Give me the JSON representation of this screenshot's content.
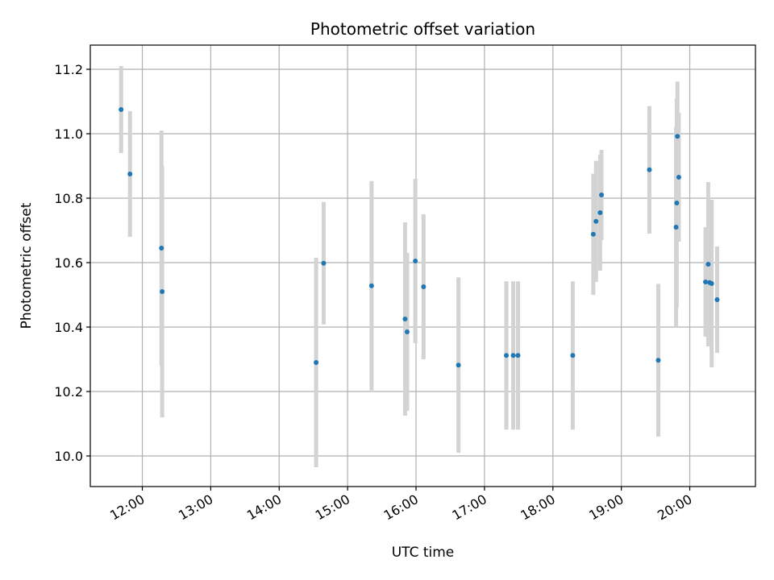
{
  "chart_data": {
    "type": "scatter",
    "title": "Photometric offset variation",
    "xlabel": "UTC time",
    "ylabel": "Photometric offset",
    "x_unit": "hours UTC",
    "xlim": [
      11.24,
      20.96
    ],
    "ylim": [
      9.905,
      11.275
    ],
    "x_ticks": [
      {
        "value": 12,
        "label": "12:00"
      },
      {
        "value": 13,
        "label": "13:00"
      },
      {
        "value": 14,
        "label": "14:00"
      },
      {
        "value": 15,
        "label": "15:00"
      },
      {
        "value": 16,
        "label": "16:00"
      },
      {
        "value": 17,
        "label": "17:00"
      },
      {
        "value": 18,
        "label": "18:00"
      },
      {
        "value": 19,
        "label": "19:00"
      },
      {
        "value": 20,
        "label": "20:00"
      }
    ],
    "y_ticks": [
      {
        "value": 10.0,
        "label": "10.0"
      },
      {
        "value": 10.2,
        "label": "10.2"
      },
      {
        "value": 10.4,
        "label": "10.4"
      },
      {
        "value": 10.6,
        "label": "10.6"
      },
      {
        "value": 10.8,
        "label": "10.8"
      },
      {
        "value": 11.0,
        "label": "11.0"
      },
      {
        "value": 11.2,
        "label": "11.2"
      }
    ],
    "grid": true,
    "colors": {
      "point": "#1f77b4",
      "errorbar": "#d3d3d3",
      "grid": "#b0b0b0",
      "axis": "#000000"
    },
    "points": [
      {
        "x": 11.69,
        "y": 11.075,
        "yerr": 0.135
      },
      {
        "x": 11.82,
        "y": 10.875,
        "yerr": 0.195
      },
      {
        "x": 12.28,
        "y": 10.645,
        "yerr": 0.365
      },
      {
        "x": 12.29,
        "y": 10.51,
        "yerr": 0.39
      },
      {
        "x": 14.54,
        "y": 10.29,
        "yerr": 0.325
      },
      {
        "x": 14.65,
        "y": 10.598,
        "yerr": 0.19
      },
      {
        "x": 15.35,
        "y": 10.528,
        "yerr": 0.325
      },
      {
        "x": 15.84,
        "y": 10.425,
        "yerr": 0.3
      },
      {
        "x": 15.87,
        "y": 10.385,
        "yerr": 0.245
      },
      {
        "x": 15.99,
        "y": 10.605,
        "yerr": 0.255
      },
      {
        "x": 16.11,
        "y": 10.525,
        "yerr": 0.225
      },
      {
        "x": 16.62,
        "y": 10.282,
        "yerr": 0.272
      },
      {
        "x": 17.32,
        "y": 10.312,
        "yerr": 0.23
      },
      {
        "x": 17.42,
        "y": 10.312,
        "yerr": 0.23
      },
      {
        "x": 17.49,
        "y": 10.312,
        "yerr": 0.23
      },
      {
        "x": 18.29,
        "y": 10.312,
        "yerr": 0.23
      },
      {
        "x": 18.59,
        "y": 10.688,
        "yerr": 0.188
      },
      {
        "x": 18.63,
        "y": 10.728,
        "yerr": 0.188
      },
      {
        "x": 18.69,
        "y": 10.755,
        "yerr": 0.18
      },
      {
        "x": 18.71,
        "y": 10.81,
        "yerr": 0.14
      },
      {
        "x": 19.41,
        "y": 10.888,
        "yerr": 0.198
      },
      {
        "x": 19.54,
        "y": 10.297,
        "yerr": 0.237
      },
      {
        "x": 19.8,
        "y": 10.71,
        "yerr": 0.31
      },
      {
        "x": 19.81,
        "y": 10.785,
        "yerr": 0.325
      },
      {
        "x": 19.82,
        "y": 10.992,
        "yerr": 0.17
      },
      {
        "x": 19.84,
        "y": 10.865,
        "yerr": 0.2
      },
      {
        "x": 20.23,
        "y": 10.54,
        "yerr": 0.17
      },
      {
        "x": 20.27,
        "y": 10.595,
        "yerr": 0.255
      },
      {
        "x": 20.29,
        "y": 10.538,
        "yerr": 0.195
      },
      {
        "x": 20.32,
        "y": 10.535,
        "yerr": 0.26
      },
      {
        "x": 20.4,
        "y": 10.485,
        "yerr": 0.165
      }
    ]
  }
}
